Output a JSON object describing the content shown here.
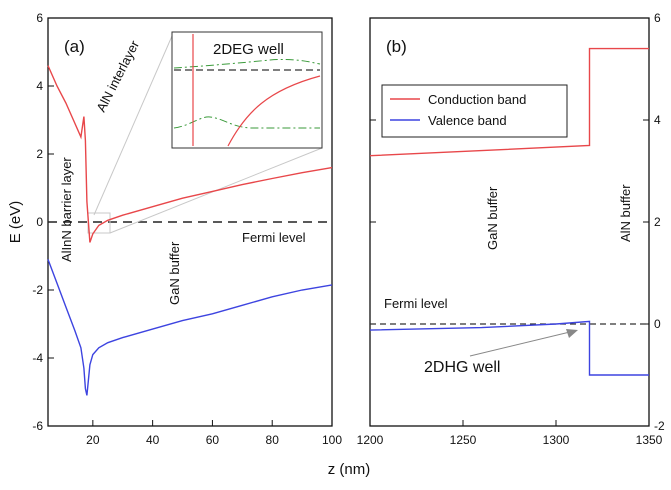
{
  "chart_data": {
    "type": "line",
    "xlabel": "z (nm)",
    "ylabel": "E (eV)",
    "legend": {
      "placement": "top-right of panel (b)",
      "entries": [
        "Conduction band",
        "Valence band"
      ]
    },
    "colors": {
      "conduction": "#e8474a",
      "valence": "#3d44e0",
      "fermi": "#222222",
      "inset_dash": "#3a9a3a",
      "guide": "#c8c8c8"
    },
    "panels": [
      {
        "label": "(a)",
        "xlim": [
          5,
          100
        ],
        "ylim": [
          -6,
          6
        ],
        "xticks": [
          20,
          40,
          60,
          80,
          100
        ],
        "yticks": [
          -6,
          -4,
          -2,
          0,
          2,
          4,
          6
        ],
        "series": [
          {
            "name": "Conduction band",
            "x": [
              5,
              8,
              11,
              14,
              16,
              17,
              17.5,
              18,
              19,
              20,
              22,
              25,
              30,
              40,
              50,
              60,
              70,
              80,
              90,
              100
            ],
            "y": [
              4.6,
              4.0,
              3.5,
              2.9,
              2.5,
              3.1,
              2.4,
              0.6,
              -0.6,
              -0.35,
              -0.1,
              0.05,
              0.2,
              0.45,
              0.7,
              0.9,
              1.1,
              1.28,
              1.45,
              1.6
            ]
          },
          {
            "name": "Valence band",
            "x": [
              5,
              8,
              11,
              14,
              16,
              17,
              17.5,
              18,
              19,
              20,
              22,
              25,
              30,
              40,
              50,
              60,
              70,
              80,
              90,
              100
            ],
            "y": [
              -1.1,
              -1.8,
              -2.5,
              -3.2,
              -3.7,
              -4.3,
              -4.9,
              -5.1,
              -4.2,
              -3.9,
              -3.7,
              -3.55,
              -3.4,
              -3.15,
              -2.9,
              -2.7,
              -2.45,
              -2.2,
              -2.0,
              -1.85
            ]
          }
        ],
        "fermi_label": "Fermi level",
        "region_labels": [
          "AlInN barrier layer",
          "AlN interlayer",
          "GaN buffer"
        ],
        "inset_title": "2DEG well"
      },
      {
        "label": "(b)",
        "xlim": [
          1200,
          1350
        ],
        "ylim": [
          -2,
          6
        ],
        "xticks": [
          1200,
          1250,
          1300,
          1350
        ],
        "yticks": [
          -2,
          0,
          2,
          4,
          6
        ],
        "series": [
          {
            "name": "Conduction band",
            "x": [
              1200,
              1260,
              1318,
              1318,
              1350
            ],
            "y": [
              3.3,
              3.4,
              3.5,
              5.4,
              5.4
            ]
          },
          {
            "name": "Valence band",
            "x": [
              1200,
              1260,
              1300,
              1318,
              1318,
              1350
            ],
            "y": [
              -0.12,
              -0.07,
              0.0,
              0.05,
              -1.0,
              -1.0
            ]
          }
        ],
        "fermi_label": "Fermi level",
        "region_labels": [
          "GaN buffer",
          "AlN buffer"
        ],
        "annotation": "2DHG well"
      }
    ]
  }
}
